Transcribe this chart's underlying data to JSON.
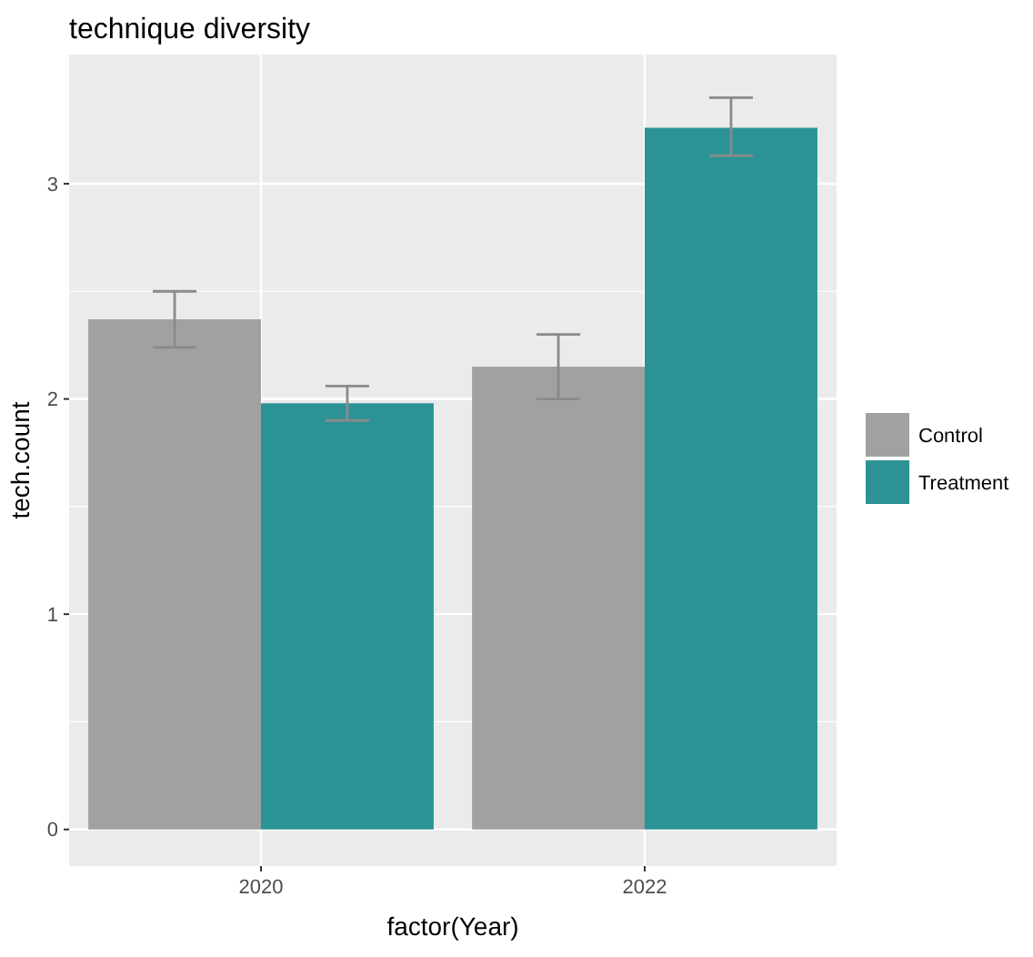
{
  "chart_data": {
    "type": "bar",
    "title": "technique diversity",
    "xlabel": "factor(Year)",
    "ylabel": "tech.count",
    "categories": [
      "2020",
      "2022"
    ],
    "series": [
      {
        "name": "Control",
        "color": "#a0a1a1",
        "values": [
          2.37,
          2.15
        ],
        "errors": [
          [
            2.24,
            2.5
          ],
          [
            2.0,
            2.3
          ]
        ]
      },
      {
        "name": "Treatment",
        "color": "#2b9396",
        "values": [
          1.98,
          3.26
        ],
        "errors": [
          [
            1.9,
            2.06
          ],
          [
            3.13,
            3.4
          ]
        ]
      }
    ],
    "ylim": [
      -0.17,
      3.6
    ],
    "yticks": [
      0,
      1,
      2,
      3
    ],
    "grid": true,
    "legend": "right"
  }
}
